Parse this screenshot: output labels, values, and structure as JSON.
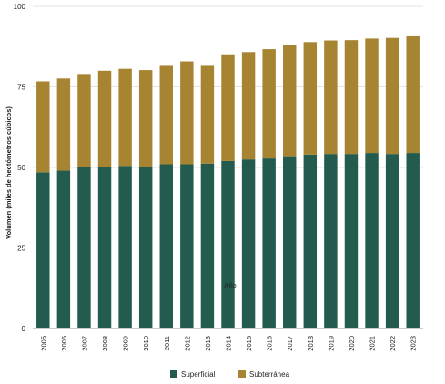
{
  "chart_data": {
    "type": "bar",
    "stacked": true,
    "title": "",
    "xlabel": "Año",
    "ylabel": "Volumen (miles de hectómetros cúbicos)",
    "ylim": [
      0,
      100
    ],
    "yticks": [
      0,
      25,
      50,
      75,
      100
    ],
    "grid": true,
    "legend_position": "bottom",
    "categories": [
      "2005",
      "2006",
      "2007",
      "2008",
      "2009",
      "2010",
      "2011",
      "2012",
      "2013",
      "2014",
      "2015",
      "2016",
      "2017",
      "2018",
      "2019",
      "2020",
      "2021",
      "2022",
      "2023"
    ],
    "series": [
      {
        "name": "Superficial",
        "color": "#235c4e",
        "values": [
          48.5,
          49.0,
          50.0,
          50.2,
          50.5,
          50.0,
          51.0,
          51.0,
          51.2,
          52.0,
          52.5,
          52.8,
          53.5,
          54.0,
          54.2,
          54.2,
          54.5,
          54.2,
          54.5
        ]
      },
      {
        "name": "Subterránea",
        "color": "#a68431",
        "values": [
          28.2,
          28.6,
          29.0,
          29.8,
          30.1,
          30.2,
          30.8,
          31.9,
          30.6,
          33.1,
          33.3,
          33.9,
          34.5,
          34.9,
          35.2,
          35.3,
          35.5,
          36.0,
          36.2
        ]
      }
    ]
  }
}
